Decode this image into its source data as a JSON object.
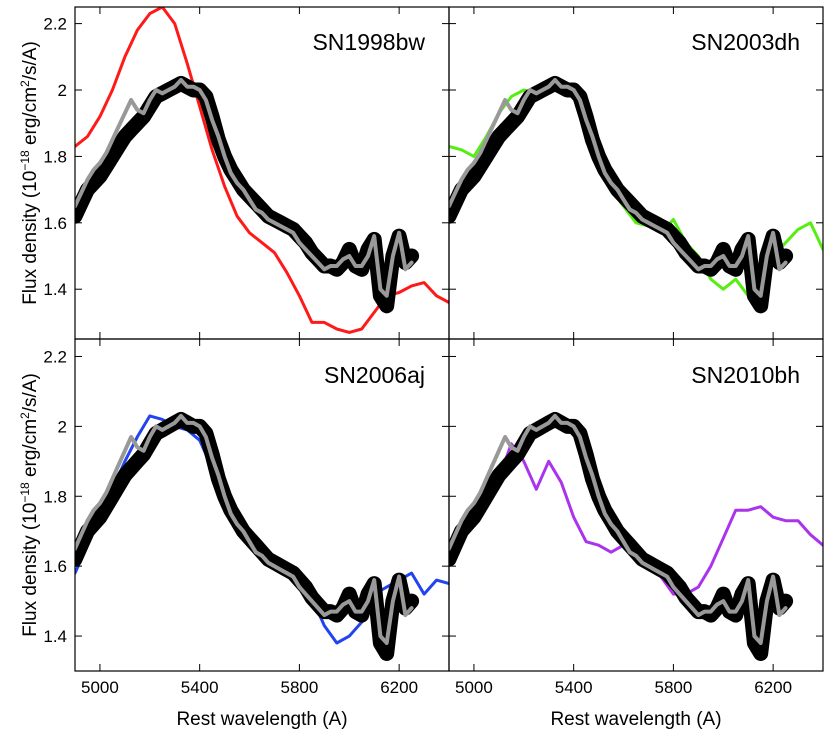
{
  "figure": {
    "ylabel_main": "Flux density  (10",
    "ylabel_exp": "−18",
    "ylabel_units": " erg/cm",
    "ylabel_exp2": "2",
    "ylabel_tail": "/s/A)",
    "xlabel": "Rest wavelength  (A)"
  },
  "chart_data": [
    {
      "type": "line",
      "title": "SN1998bw",
      "xlim": [
        4900,
        6400
      ],
      "ylim": [
        1.25,
        2.25
      ],
      "xticks": [
        5000,
        5400,
        5800,
        6200
      ],
      "yticks": [
        1.4,
        1.6,
        1.8,
        2.0,
        2.2
      ],
      "ytick_labels": [
        "1.4",
        "1.6",
        "1.8",
        "2",
        "2.2"
      ],
      "series": [
        {
          "role": "comparison",
          "color": "#ff1a1a",
          "x": [
            4900,
            4950,
            5000,
            5050,
            5100,
            5150,
            5200,
            5250,
            5300,
            5350,
            5400,
            5450,
            5500,
            5550,
            5600,
            5650,
            5700,
            5750,
            5800,
            5850,
            5900,
            5950,
            6000,
            6050,
            6100,
            6150,
            6200,
            6250,
            6300,
            6350,
            6400
          ],
          "y": [
            1.83,
            1.86,
            1.92,
            2.0,
            2.1,
            2.18,
            2.23,
            2.25,
            2.2,
            2.08,
            1.95,
            1.82,
            1.71,
            1.62,
            1.57,
            1.54,
            1.51,
            1.45,
            1.38,
            1.3,
            1.3,
            1.28,
            1.27,
            1.28,
            1.33,
            1.38,
            1.39,
            1.41,
            1.42,
            1.38,
            1.36
          ]
        },
        {
          "role": "observed",
          "color": "#000000"
        },
        {
          "role": "model",
          "color": "#999999"
        }
      ]
    },
    {
      "type": "line",
      "title": "SN2003dh",
      "xlim": [
        4900,
        6400
      ],
      "ylim": [
        1.25,
        2.25
      ],
      "xticks": [
        5000,
        5400,
        5800,
        6200
      ],
      "yticks": [
        1.4,
        1.6,
        1.8,
        2.0,
        2.2
      ],
      "ytick_labels": [
        "1.4",
        "1.6",
        "1.8",
        "2",
        "2.2"
      ],
      "series": [
        {
          "role": "comparison",
          "color": "#55ee11",
          "x": [
            4900,
            4950,
            5000,
            5050,
            5100,
            5150,
            5200,
            5250,
            5300,
            5350,
            5400,
            5450,
            5500,
            5550,
            5600,
            5650,
            5700,
            5750,
            5800,
            5850,
            5900,
            5950,
            6000,
            6050,
            6100,
            6150,
            6200,
            6250,
            6300,
            6350,
            6400
          ],
          "y": [
            1.83,
            1.82,
            1.8,
            1.86,
            1.93,
            1.98,
            2.0,
            1.99,
            2.01,
            2.03,
            2.0,
            1.9,
            1.8,
            1.7,
            1.65,
            1.6,
            1.59,
            1.57,
            1.61,
            1.54,
            1.5,
            1.43,
            1.4,
            1.43,
            1.38,
            1.45,
            1.5,
            1.54,
            1.58,
            1.6,
            1.52
          ]
        },
        {
          "role": "observed",
          "color": "#000000"
        },
        {
          "role": "model",
          "color": "#999999"
        }
      ]
    },
    {
      "type": "line",
      "title": "SN2006aj",
      "xlim": [
        4900,
        6400
      ],
      "ylim": [
        1.3,
        2.25
      ],
      "xticks": [
        5000,
        5400,
        5800,
        6200
      ],
      "yticks": [
        1.4,
        1.6,
        1.8,
        2.0,
        2.2
      ],
      "ytick_labels": [
        "1.4",
        "1.6",
        "1.8",
        "2",
        "2.2"
      ],
      "series": [
        {
          "role": "comparison",
          "color": "#2244ee",
          "x": [
            4900,
            4950,
            5000,
            5050,
            5100,
            5150,
            5200,
            5250,
            5300,
            5350,
            5400,
            5450,
            5500,
            5550,
            5600,
            5650,
            5700,
            5750,
            5800,
            5850,
            5900,
            5950,
            6000,
            6050,
            6100,
            6150,
            6200,
            6250,
            6300,
            6350,
            6400
          ],
          "y": [
            1.58,
            1.66,
            1.74,
            1.82,
            1.9,
            1.97,
            2.03,
            2.02,
            2.0,
            1.99,
            1.96,
            1.88,
            1.83,
            1.74,
            1.69,
            1.66,
            1.62,
            1.58,
            1.56,
            1.51,
            1.43,
            1.38,
            1.4,
            1.44,
            1.52,
            1.54,
            1.56,
            1.58,
            1.52,
            1.56,
            1.55
          ]
        },
        {
          "role": "observed",
          "color": "#000000"
        },
        {
          "role": "model",
          "color": "#999999"
        }
      ]
    },
    {
      "type": "line",
      "title": "SN2010bh",
      "xlim": [
        4900,
        6400
      ],
      "ylim": [
        1.3,
        2.25
      ],
      "xticks": [
        5000,
        5400,
        5800,
        6200
      ],
      "yticks": [
        1.4,
        1.6,
        1.8,
        2.0,
        2.2
      ],
      "ytick_labels": [
        "1.4",
        "1.6",
        "1.8",
        "2",
        "2.2"
      ],
      "series": [
        {
          "role": "comparison",
          "color": "#aa33ee",
          "x": [
            4900,
            4950,
            5000,
            5050,
            5100,
            5150,
            5200,
            5250,
            5300,
            5350,
            5400,
            5450,
            5500,
            5550,
            5600,
            5650,
            5700,
            5750,
            5800,
            5850,
            5900,
            5950,
            6000,
            6050,
            6100,
            6150,
            6200,
            6250,
            6300,
            6350,
            6400
          ],
          "y": [
            1.65,
            1.7,
            1.73,
            1.78,
            1.85,
            1.95,
            1.9,
            1.82,
            1.9,
            1.84,
            1.74,
            1.67,
            1.66,
            1.64,
            1.66,
            1.62,
            1.6,
            1.57,
            1.52,
            1.52,
            1.54,
            1.6,
            1.68,
            1.76,
            1.76,
            1.77,
            1.74,
            1.73,
            1.73,
            1.69,
            1.66
          ]
        },
        {
          "role": "observed",
          "color": "#000000"
        },
        {
          "role": "model",
          "color": "#999999"
        }
      ]
    }
  ],
  "shared_spectrum": {
    "x": [
      4900,
      4925,
      4950,
      4975,
      5000,
      5025,
      5050,
      5075,
      5100,
      5125,
      5150,
      5175,
      5200,
      5225,
      5250,
      5275,
      5300,
      5325,
      5350,
      5375,
      5400,
      5425,
      5450,
      5475,
      5500,
      5525,
      5550,
      5575,
      5600,
      5625,
      5650,
      5675,
      5700,
      5725,
      5750,
      5775,
      5800,
      5825,
      5850,
      5875,
      5900,
      5925,
      5950,
      5975,
      6000,
      6025,
      6050,
      6075,
      6100,
      6125,
      6150,
      6175,
      6200,
      6225,
      6250
    ],
    "observed": [
      1.62,
      1.66,
      1.7,
      1.72,
      1.74,
      1.77,
      1.8,
      1.83,
      1.86,
      1.88,
      1.9,
      1.92,
      1.95,
      1.98,
      1.99,
      2.0,
      2.01,
      2.02,
      2.01,
      2.0,
      2.0,
      1.98,
      1.92,
      1.85,
      1.8,
      1.76,
      1.73,
      1.7,
      1.68,
      1.66,
      1.64,
      1.62,
      1.61,
      1.6,
      1.59,
      1.58,
      1.56,
      1.54,
      1.51,
      1.49,
      1.47,
      1.47,
      1.46,
      1.48,
      1.52,
      1.47,
      1.46,
      1.52,
      1.55,
      1.38,
      1.35,
      1.5,
      1.56,
      1.48,
      1.5
    ],
    "model": [
      1.65,
      1.69,
      1.73,
      1.76,
      1.78,
      1.81,
      1.85,
      1.89,
      1.93,
      1.97,
      1.94,
      1.93,
      1.97,
      2.0,
      1.99,
      2.0,
      2.01,
      2.03,
      2.01,
      2.01,
      2.0,
      1.97,
      1.91,
      1.86,
      1.8,
      1.75,
      1.72,
      1.7,
      1.67,
      1.64,
      1.63,
      1.61,
      1.6,
      1.59,
      1.58,
      1.57,
      1.54,
      1.52,
      1.5,
      1.48,
      1.46,
      1.47,
      1.47,
      1.49,
      1.5,
      1.47,
      1.47,
      1.5,
      1.56,
      1.4,
      1.38,
      1.5,
      1.57,
      1.46,
      1.48
    ]
  }
}
